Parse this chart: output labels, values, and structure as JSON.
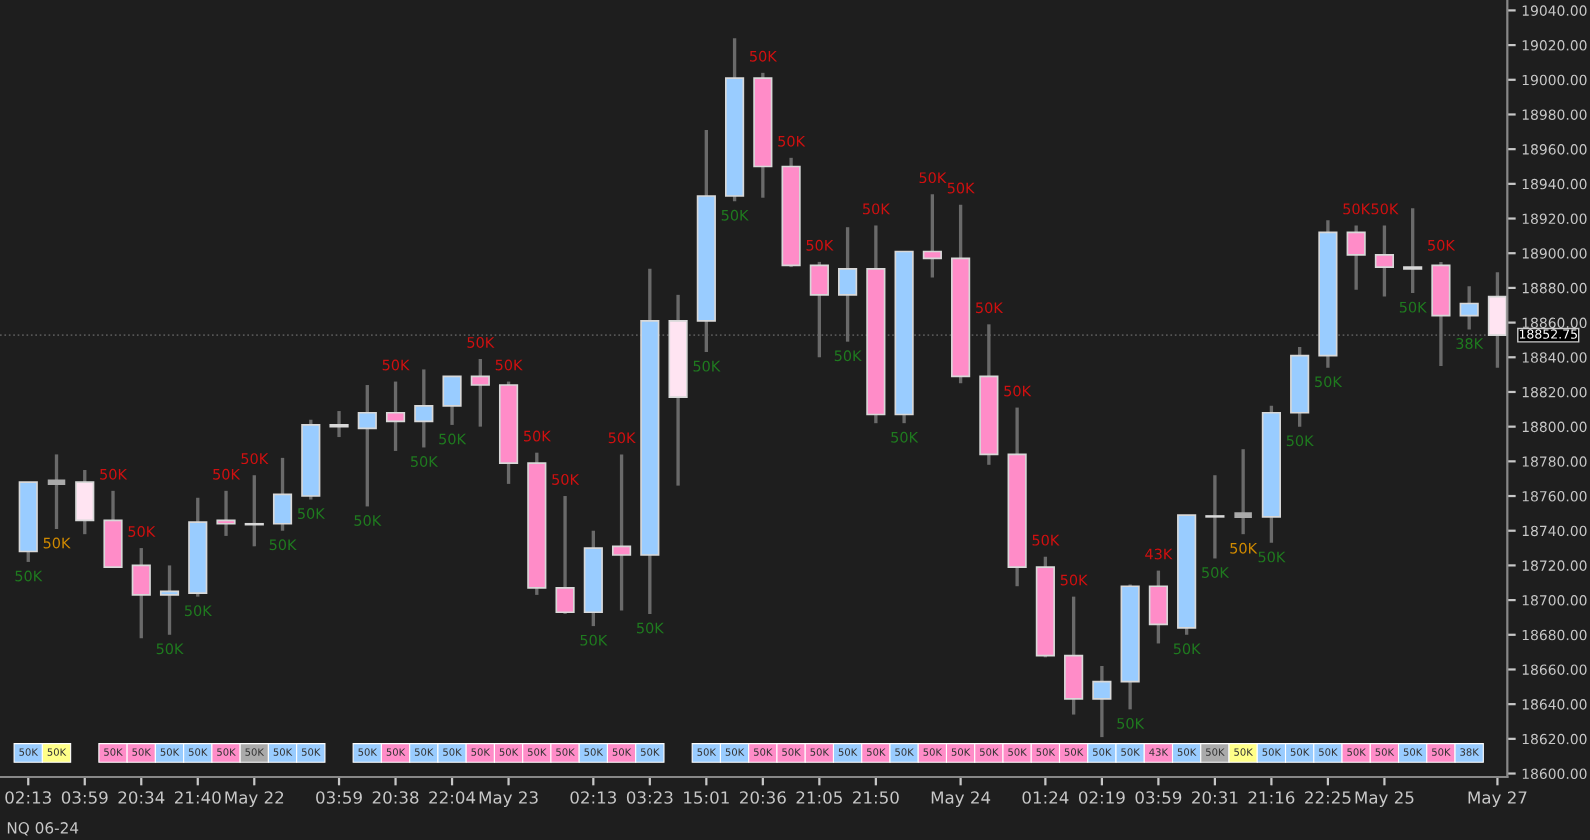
{
  "chart_data": {
    "type": "candlestick",
    "categories": [
      "02:13",
      null,
      "03:59",
      null,
      "20:34",
      null,
      "21:40",
      null,
      "May 22",
      null,
      null,
      "03:59",
      null,
      "20:38",
      null,
      "22:04",
      null,
      "May 23",
      null,
      null,
      "02:13",
      null,
      "03:23",
      null,
      "15:01",
      null,
      "20:36",
      null,
      "21:05",
      null,
      "21:50",
      null,
      null,
      "May 24",
      null,
      null,
      "01:24",
      null,
      "02:19",
      null,
      "03:59",
      null,
      "20:31",
      null,
      "21:16",
      null,
      "22:25",
      null,
      "May 25",
      null,
      null,
      null,
      "May 27"
    ],
    "ohlc": [
      [
        18728,
        18768,
        18722,
        18768
      ],
      [
        18768,
        18784,
        18741,
        18768
      ],
      [
        18768,
        18775,
        18738,
        18746
      ],
      [
        18746,
        18763,
        18719,
        18719
      ],
      [
        18720,
        18730,
        18678,
        18703
      ],
      [
        18703,
        18720,
        18680,
        18705
      ],
      [
        18704,
        18759,
        18702,
        18745
      ],
      [
        18746,
        18763,
        18737,
        18744
      ],
      [
        18744,
        18772,
        18731,
        18743.5
      ],
      [
        18744,
        18782,
        18740,
        18761
      ],
      [
        18760,
        18804,
        18758,
        18801
      ],
      [
        18801,
        18809,
        18794,
        18800
      ],
      [
        18799,
        18824,
        18754,
        18808
      ],
      [
        18808,
        18826,
        18786,
        18803
      ],
      [
        18803,
        18833,
        18788,
        18812
      ],
      [
        18812,
        18829,
        18801,
        18829
      ],
      [
        18829,
        18839,
        18800,
        18824
      ],
      [
        18824,
        18826,
        18767,
        18779
      ],
      [
        18779,
        18785,
        18703,
        18707
      ],
      [
        18707,
        18760,
        18692,
        18693
      ],
      [
        18693,
        18740,
        18685,
        18730
      ],
      [
        18731,
        18784,
        18694,
        18726
      ],
      [
        18726,
        18891,
        18692,
        18861
      ],
      [
        18861,
        18876,
        18766,
        18817
      ],
      [
        18861,
        18971,
        18843,
        18933
      ],
      [
        18933,
        19024,
        18930,
        19001
      ],
      [
        19001,
        19004,
        18932,
        18950
      ],
      [
        18950,
        18955,
        18892,
        18893
      ],
      [
        18893,
        18895,
        18840,
        18876
      ],
      [
        18876,
        18915,
        18849,
        18891
      ],
      [
        18891,
        18916,
        18802,
        18807
      ],
      [
        18807,
        18901,
        18802,
        18901
      ],
      [
        18901,
        18934,
        18886,
        18897
      ],
      [
        18897,
        18928,
        18825,
        18829
      ],
      [
        18829,
        18859,
        18778,
        18784
      ],
      [
        18784,
        18811,
        18708,
        18719
      ],
      [
        18719,
        18725,
        18667,
        18668
      ],
      [
        18668,
        18702,
        18634,
        18643
      ],
      [
        18643,
        18662,
        18621,
        18653
      ],
      [
        18653,
        18709,
        18637,
        18708
      ],
      [
        18708,
        18717,
        18675,
        18686
      ],
      [
        18684,
        18749,
        18680,
        18749
      ],
      [
        18748,
        18772,
        18724,
        18748.5
      ],
      [
        18749,
        18787,
        18738,
        18749
      ],
      [
        18748,
        18812,
        18733,
        18808
      ],
      [
        18808,
        18846,
        18800,
        18841
      ],
      [
        18841,
        18919,
        18834,
        18912
      ],
      [
        18912,
        18916,
        18879,
        18899
      ],
      [
        18899,
        18916,
        18875,
        18892
      ],
      [
        18891,
        18926,
        18877,
        18892
      ],
      [
        18893,
        18895,
        18835,
        18864
      ],
      [
        18864,
        18881,
        18856,
        18871
      ],
      [
        18875,
        18889,
        18834,
        18852.75
      ]
    ],
    "colors": [
      "#99ccff",
      "#aaaaaa",
      "#ffe4f2",
      "#ff8cc8",
      "#ff8cc8",
      "#99ccff",
      "#99ccff",
      "#ff8cc8",
      "#aaaaaa",
      "#99ccff",
      "#99ccff",
      "#ff8cc8",
      "#99ccff",
      "#ff8cc8",
      "#99ccff",
      "#99ccff",
      "#ff8cc8",
      "#ff8cc8",
      "#ff8cc8",
      "#ff8cc8",
      "#99ccff",
      "#ff8cc8",
      "#99ccff",
      "#ffe4f2",
      "#99ccff",
      "#99ccff",
      "#ff8cc8",
      "#ff8cc8",
      "#ff8cc8",
      "#99ccff",
      "#ff8cc8",
      "#99ccff",
      "#ff8cc8",
      "#ff8cc8",
      "#ff8cc8",
      "#ff8cc8",
      "#ff8cc8",
      "#ff8cc8",
      "#99ccff",
      "#99ccff",
      "#ff8cc8",
      "#99ccff",
      "#aaaaaa",
      "#aaaaaa",
      "#99ccff",
      "#99ccff",
      "#99ccff",
      "#ff8cc8",
      "#ff8cc8",
      "#99ccff",
      "#ff8cc8",
      "#99ccff",
      "#ffe4f2"
    ],
    "value_labels": [
      "50K",
      "50K",
      null,
      "50K",
      "50K",
      "50K",
      "50K",
      "50K",
      "50K",
      "50K",
      "50K",
      null,
      "50K",
      "50K",
      "50K",
      "50K",
      "50K",
      "50K",
      "50K",
      "50K",
      "50K",
      "50K",
      "50K",
      null,
      "50K",
      "50K",
      "50K",
      "50K",
      "50K",
      "50K",
      "50K",
      "50K",
      "50K",
      "50K",
      "50K",
      "50K",
      "50K",
      "50K",
      "50K",
      "50K",
      "43K",
      "50K",
      "50K",
      "50K",
      "50K",
      "50K",
      "50K",
      "50K",
      "50K",
      "50K",
      "50K",
      "38K",
      null
    ],
    "ylim": [
      18598,
      19046
    ],
    "yticks": [
      {
        "value": 18600,
        "label": "18600.00"
      },
      {
        "value": 18620,
        "label": "18620.00"
      },
      {
        "value": 18640,
        "label": "18640.00"
      },
      {
        "value": 18660,
        "label": "18660.00"
      },
      {
        "value": 18680,
        "label": "18680.00"
      },
      {
        "value": 18700,
        "label": "18700.00"
      },
      {
        "value": 18720,
        "label": "18720.00"
      },
      {
        "value": 18740,
        "label": "18740.00"
      },
      {
        "value": 18760,
        "label": "18760.00"
      },
      {
        "value": 18780,
        "label": "18780.00"
      },
      {
        "value": 18800,
        "label": "18800.00"
      },
      {
        "value": 18820,
        "label": "18820.00"
      },
      {
        "value": 18840,
        "label": "18840.00"
      },
      {
        "value": 18860,
        "label": "18860.00"
      },
      {
        "value": 18880,
        "label": "18880.00"
      },
      {
        "value": 18900,
        "label": "18900.00"
      },
      {
        "value": 18920,
        "label": "18920.00"
      },
      {
        "value": 18940,
        "label": "18940.00"
      },
      {
        "value": 18960,
        "label": "18960.00"
      },
      {
        "value": 18980,
        "label": "18980.00"
      },
      {
        "value": 19000,
        "label": "19000.00"
      },
      {
        "value": 19020,
        "label": "19020.00"
      },
      {
        "value": 19040,
        "label": "19040.00"
      }
    ],
    "ref_lines": [
      {
        "axis": "y",
        "value": 18852.75,
        "label": "18852.75"
      }
    ],
    "annotations": [
      "NQ 06-24"
    ],
    "grid": false,
    "legend": false
  }
}
